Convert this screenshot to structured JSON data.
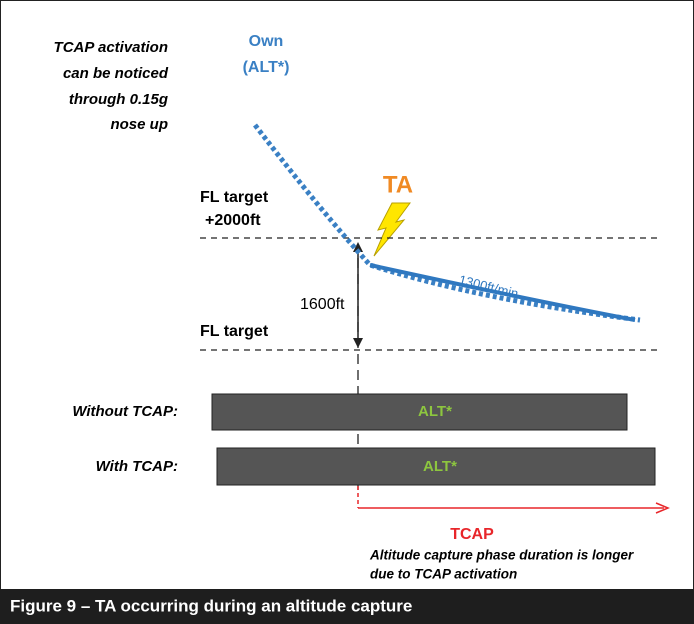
{
  "note_lines": [
    "TCAP activation",
    "can be noticed",
    "through 0.15g",
    "nose up"
  ],
  "own": {
    "label": "Own",
    "mode": "(ALT*)"
  },
  "ta_label": "TA",
  "upper_level": {
    "label": "FL target",
    "offset": "+2000ft"
  },
  "lower_level": {
    "label": "FL target"
  },
  "gap_label": "1600ft",
  "rate_label": "1300ft/min",
  "bars": [
    {
      "label": "Without TCAP:",
      "mode": "ALT*"
    },
    {
      "label": "With TCAP:",
      "mode": "ALT*"
    }
  ],
  "tcap": {
    "label": "TCAP",
    "lines": [
      "Altitude capture phase duration is longer",
      "due to TCAP activation"
    ]
  },
  "caption": "Figure 9 – TA occurring during an altitude capture"
}
